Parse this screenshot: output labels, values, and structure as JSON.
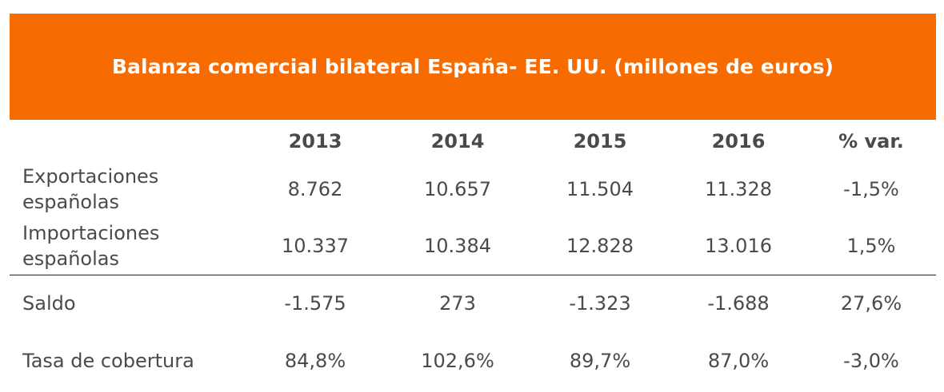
{
  "colors": {
    "header_bg": "#f76b00",
    "header_text": "#ffffff",
    "body_text": "#4a4a4a",
    "divider": "#222222"
  },
  "chart_data": {
    "type": "table",
    "title": "Balanza comercial bilateral España- EE. UU. (millones de euros)",
    "columns": [
      "2013",
      "2014",
      "2015",
      "2016",
      "% var."
    ],
    "rows": [
      {
        "label": "Exportaciones españolas",
        "values": [
          "8.762",
          "10.657",
          "11.504",
          "11.328",
          "-1,5%"
        ]
      },
      {
        "label": "Importaciones españolas",
        "values": [
          "10.337",
          "10.384",
          "12.828",
          "13.016",
          "1,5%"
        ]
      },
      {
        "label": "Saldo",
        "values": [
          "-1.575",
          "273",
          "-1.323",
          "-1.688",
          "27,6%"
        ]
      },
      {
        "label": "Tasa de cobertura",
        "values": [
          "84,8%",
          "102,6%",
          "89,7%",
          "87,0%",
          "-3,0%"
        ]
      }
    ]
  }
}
